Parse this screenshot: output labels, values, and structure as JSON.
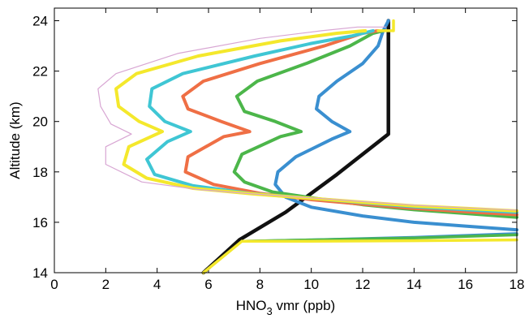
{
  "chart_data": {
    "type": "line",
    "title": "",
    "xlabel": "HNO",
    "xlabel_sub": "3",
    "xlabel_suffix": " vmr (ppb)",
    "ylabel": "Altitude (km)",
    "xlim": [
      0,
      18
    ],
    "ylim": [
      14,
      24.5
    ],
    "xticks": [
      0,
      2,
      4,
      6,
      8,
      10,
      12,
      14,
      16,
      18
    ],
    "yticks": [
      14,
      16,
      18,
      20,
      22,
      24
    ],
    "grid": false,
    "legend": "none",
    "series": [
      {
        "color": "#111111",
        "width": 4.5,
        "points": [
          [
            5.8,
            14.0
          ],
          [
            7.2,
            15.3
          ],
          [
            9.0,
            16.4
          ],
          [
            11.0,
            17.9
          ],
          [
            13.0,
            19.5
          ],
          [
            13.0,
            24.0
          ]
        ]
      },
      {
        "color": "#3a8fd0",
        "width": 4,
        "points": [
          [
            18,
            15.7
          ],
          [
            16,
            15.85
          ],
          [
            14,
            16.0
          ],
          [
            12,
            16.25
          ],
          [
            10,
            16.6
          ],
          [
            9.0,
            17.0
          ],
          [
            8.6,
            17.5
          ],
          [
            8.7,
            18.0
          ],
          [
            9.4,
            18.6
          ],
          [
            10.8,
            19.3
          ],
          [
            11.5,
            19.6
          ],
          [
            10.8,
            20.0
          ],
          [
            10.2,
            20.5
          ],
          [
            10.3,
            21.0
          ],
          [
            11.0,
            21.6
          ],
          [
            12.0,
            22.3
          ],
          [
            12.6,
            23.0
          ],
          [
            12.8,
            23.6
          ],
          [
            13.0,
            24.0
          ]
        ]
      },
      {
        "color": "#4cb64a",
        "width": 4,
        "points": [
          [
            18,
            16.2
          ],
          [
            16,
            16.35
          ],
          [
            14,
            16.5
          ],
          [
            12,
            16.7
          ],
          [
            10.5,
            16.9
          ],
          [
            8.5,
            17.2
          ],
          [
            7.4,
            17.6
          ],
          [
            7.0,
            18.0
          ],
          [
            7.3,
            18.7
          ],
          [
            8.8,
            19.4
          ],
          [
            9.6,
            19.6
          ],
          [
            8.6,
            20.0
          ],
          [
            7.4,
            20.4
          ],
          [
            7.1,
            21.0
          ],
          [
            7.9,
            21.6
          ],
          [
            9.8,
            22.3
          ],
          [
            11.5,
            23.0
          ],
          [
            12.4,
            23.5
          ],
          [
            12.8,
            23.6
          ]
        ]
      },
      {
        "color": "#ef6f45",
        "width": 4,
        "points": [
          [
            18,
            16.3
          ],
          [
            16,
            16.42
          ],
          [
            14,
            16.55
          ],
          [
            12,
            16.72
          ],
          [
            10,
            16.9
          ],
          [
            8,
            17.15
          ],
          [
            6.2,
            17.5
          ],
          [
            5.1,
            18.0
          ],
          [
            5.2,
            18.6
          ],
          [
            6.6,
            19.4
          ],
          [
            7.6,
            19.6
          ],
          [
            6.5,
            20.0
          ],
          [
            5.2,
            20.5
          ],
          [
            5.0,
            21.0
          ],
          [
            5.8,
            21.6
          ],
          [
            8.0,
            22.3
          ],
          [
            10.5,
            23.0
          ],
          [
            12.0,
            23.5
          ],
          [
            12.6,
            23.6
          ]
        ]
      },
      {
        "color": "#3fc6d4",
        "width": 4,
        "points": [
          [
            18,
            16.4
          ],
          [
            16,
            16.5
          ],
          [
            14,
            16.62
          ],
          [
            12,
            16.78
          ],
          [
            10,
            16.95
          ],
          [
            7.6,
            17.15
          ],
          [
            5.4,
            17.45
          ],
          [
            3.9,
            17.9
          ],
          [
            3.6,
            18.5
          ],
          [
            4.4,
            19.2
          ],
          [
            5.3,
            19.6
          ],
          [
            4.3,
            20.0
          ],
          [
            3.7,
            20.6
          ],
          [
            3.8,
            21.3
          ],
          [
            5.0,
            21.9
          ],
          [
            7.8,
            22.6
          ],
          [
            10.0,
            23.1
          ],
          [
            11.6,
            23.4
          ],
          [
            12.4,
            23.6
          ]
        ]
      },
      {
        "color": "#f4e82c",
        "width": 4,
        "points": [
          [
            18,
            16.45
          ],
          [
            16,
            16.55
          ],
          [
            14,
            16.65
          ],
          [
            12,
            16.8
          ],
          [
            10,
            16.95
          ],
          [
            7.8,
            17.12
          ],
          [
            5.4,
            17.35
          ],
          [
            3.6,
            17.75
          ],
          [
            2.7,
            18.3
          ],
          [
            2.9,
            19.0
          ],
          [
            4.2,
            19.6
          ],
          [
            3.3,
            20.0
          ],
          [
            2.5,
            20.6
          ],
          [
            2.4,
            21.3
          ],
          [
            3.2,
            21.9
          ],
          [
            5.6,
            22.6
          ],
          [
            8.8,
            23.2
          ],
          [
            11.0,
            23.5
          ],
          [
            12.1,
            23.6
          ]
        ]
      },
      {
        "color": "#d8a6d3",
        "width": 1.2,
        "points": [
          [
            18,
            16.48
          ],
          [
            16,
            16.57
          ],
          [
            14,
            16.68
          ],
          [
            12,
            16.82
          ],
          [
            10,
            16.97
          ],
          [
            7.8,
            17.12
          ],
          [
            5.6,
            17.3
          ],
          [
            3.4,
            17.6
          ],
          [
            2.0,
            18.3
          ],
          [
            2.0,
            19.0
          ],
          [
            3.0,
            19.5
          ],
          [
            2.2,
            19.9
          ],
          [
            1.8,
            20.6
          ],
          [
            1.7,
            21.3
          ],
          [
            2.4,
            21.9
          ],
          [
            4.8,
            22.7
          ],
          [
            8.0,
            23.3
          ],
          [
            10.4,
            23.6
          ],
          [
            11.8,
            23.75
          ],
          [
            12.9,
            23.75
          ]
        ]
      },
      {
        "color": "#3a8fd0",
        "width": 3.5,
        "points": [
          [
            18,
            15.55
          ],
          [
            14,
            15.4
          ],
          [
            10,
            15.3
          ],
          [
            7.4,
            15.25
          ]
        ]
      },
      {
        "color": "#4cb64a",
        "width": 3.5,
        "points": [
          [
            18,
            15.5
          ],
          [
            14,
            15.38
          ],
          [
            10,
            15.3
          ],
          [
            7.4,
            15.25
          ]
        ]
      },
      {
        "color": "#f4e82c",
        "width": 3.5,
        "points": [
          [
            18,
            15.3
          ],
          [
            14,
            15.27
          ],
          [
            10,
            15.25
          ],
          [
            7.3,
            15.25
          ]
        ]
      },
      {
        "color": "#f4e82c",
        "width": 3.5,
        "points": [
          [
            5.8,
            14.0
          ],
          [
            7.3,
            15.25
          ]
        ]
      },
      {
        "color": "#f4e82c",
        "width": 3.5,
        "points": [
          [
            12.6,
            23.6
          ],
          [
            13.2,
            23.6
          ],
          [
            13.2,
            24.0
          ]
        ]
      }
    ]
  }
}
